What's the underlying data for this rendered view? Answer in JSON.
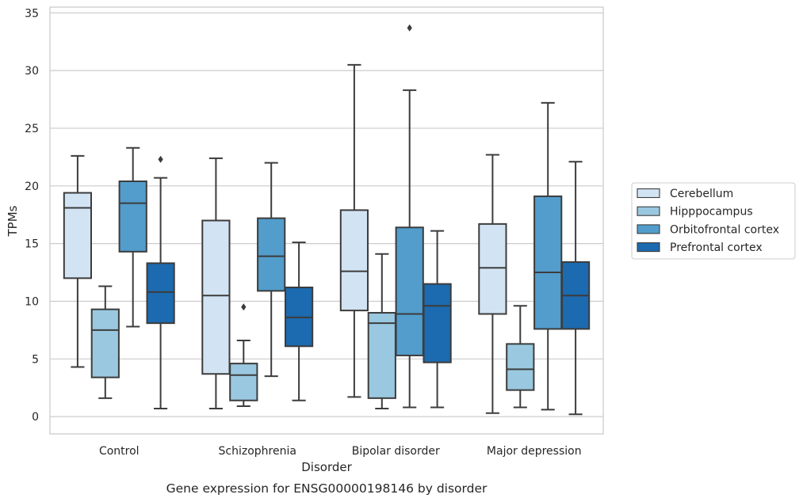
{
  "caption": "Gene expression for ENSG00000198146 by disorder",
  "chart_data": {
    "type": "box",
    "title": "",
    "xlabel": "Disorder",
    "ylabel": "TPMs",
    "ylim": [
      -1.5,
      35.5
    ],
    "yticks": [
      0,
      5,
      10,
      15,
      20,
      25,
      30,
      35
    ],
    "grid": "horizontal",
    "legend_position": "right",
    "categories": [
      "Control",
      "Schizophrenia",
      "Bipolar disorder",
      "Major depression"
    ],
    "series": [
      {
        "name": "Cerebellum",
        "color": "#d2e3f3",
        "boxes": [
          {
            "whislo": 4.3,
            "q1": 12.0,
            "med": 18.1,
            "q3": 19.4,
            "whishi": 22.6,
            "fliers": []
          },
          {
            "whislo": 0.7,
            "q1": 3.7,
            "med": 10.5,
            "q3": 17.0,
            "whishi": 22.4,
            "fliers": []
          },
          {
            "whislo": 1.7,
            "q1": 9.2,
            "med": 12.6,
            "q3": 17.9,
            "whishi": 30.5,
            "fliers": []
          },
          {
            "whislo": 0.3,
            "q1": 8.9,
            "med": 12.9,
            "q3": 16.7,
            "whishi": 22.7,
            "fliers": []
          }
        ]
      },
      {
        "name": "Hipppocampus",
        "color": "#9ac8e0",
        "boxes": [
          {
            "whislo": 1.6,
            "q1": 3.4,
            "med": 7.5,
            "q3": 9.3,
            "whishi": 11.3,
            "fliers": []
          },
          {
            "whislo": 0.9,
            "q1": 1.4,
            "med": 3.6,
            "q3": 4.6,
            "whishi": 6.6,
            "fliers": [
              9.5
            ]
          },
          {
            "whislo": 0.7,
            "q1": 1.6,
            "med": 8.1,
            "q3": 9.0,
            "whishi": 14.1,
            "fliers": []
          },
          {
            "whislo": 0.8,
            "q1": 2.3,
            "med": 4.1,
            "q3": 6.3,
            "whishi": 9.6,
            "fliers": []
          }
        ]
      },
      {
        "name": "Orbitofrontal cortex",
        "color": "#529dcc",
        "boxes": [
          {
            "whislo": 7.8,
            "q1": 14.3,
            "med": 18.5,
            "q3": 20.4,
            "whishi": 23.3,
            "fliers": []
          },
          {
            "whislo": 3.5,
            "q1": 10.9,
            "med": 13.9,
            "q3": 17.2,
            "whishi": 22.0,
            "fliers": []
          },
          {
            "whislo": 0.8,
            "q1": 5.3,
            "med": 8.9,
            "q3": 16.4,
            "whishi": 28.3,
            "fliers": [
              33.7
            ]
          },
          {
            "whislo": 0.6,
            "q1": 7.6,
            "med": 12.5,
            "q3": 19.1,
            "whishi": 27.2,
            "fliers": []
          }
        ]
      },
      {
        "name": "Prefrontal cortex",
        "color": "#1c6aaf",
        "boxes": [
          {
            "whislo": 0.7,
            "q1": 8.1,
            "med": 10.8,
            "q3": 13.3,
            "whishi": 20.7,
            "fliers": [
              22.3
            ]
          },
          {
            "whislo": 1.4,
            "q1": 6.1,
            "med": 8.6,
            "q3": 11.2,
            "whishi": 15.1,
            "fliers": []
          },
          {
            "whislo": 0.8,
            "q1": 4.7,
            "med": 9.6,
            "q3": 11.5,
            "whishi": 16.1,
            "fliers": []
          },
          {
            "whislo": 0.2,
            "q1": 7.6,
            "med": 10.5,
            "q3": 13.4,
            "whishi": 22.1,
            "fliers": []
          }
        ]
      }
    ]
  }
}
